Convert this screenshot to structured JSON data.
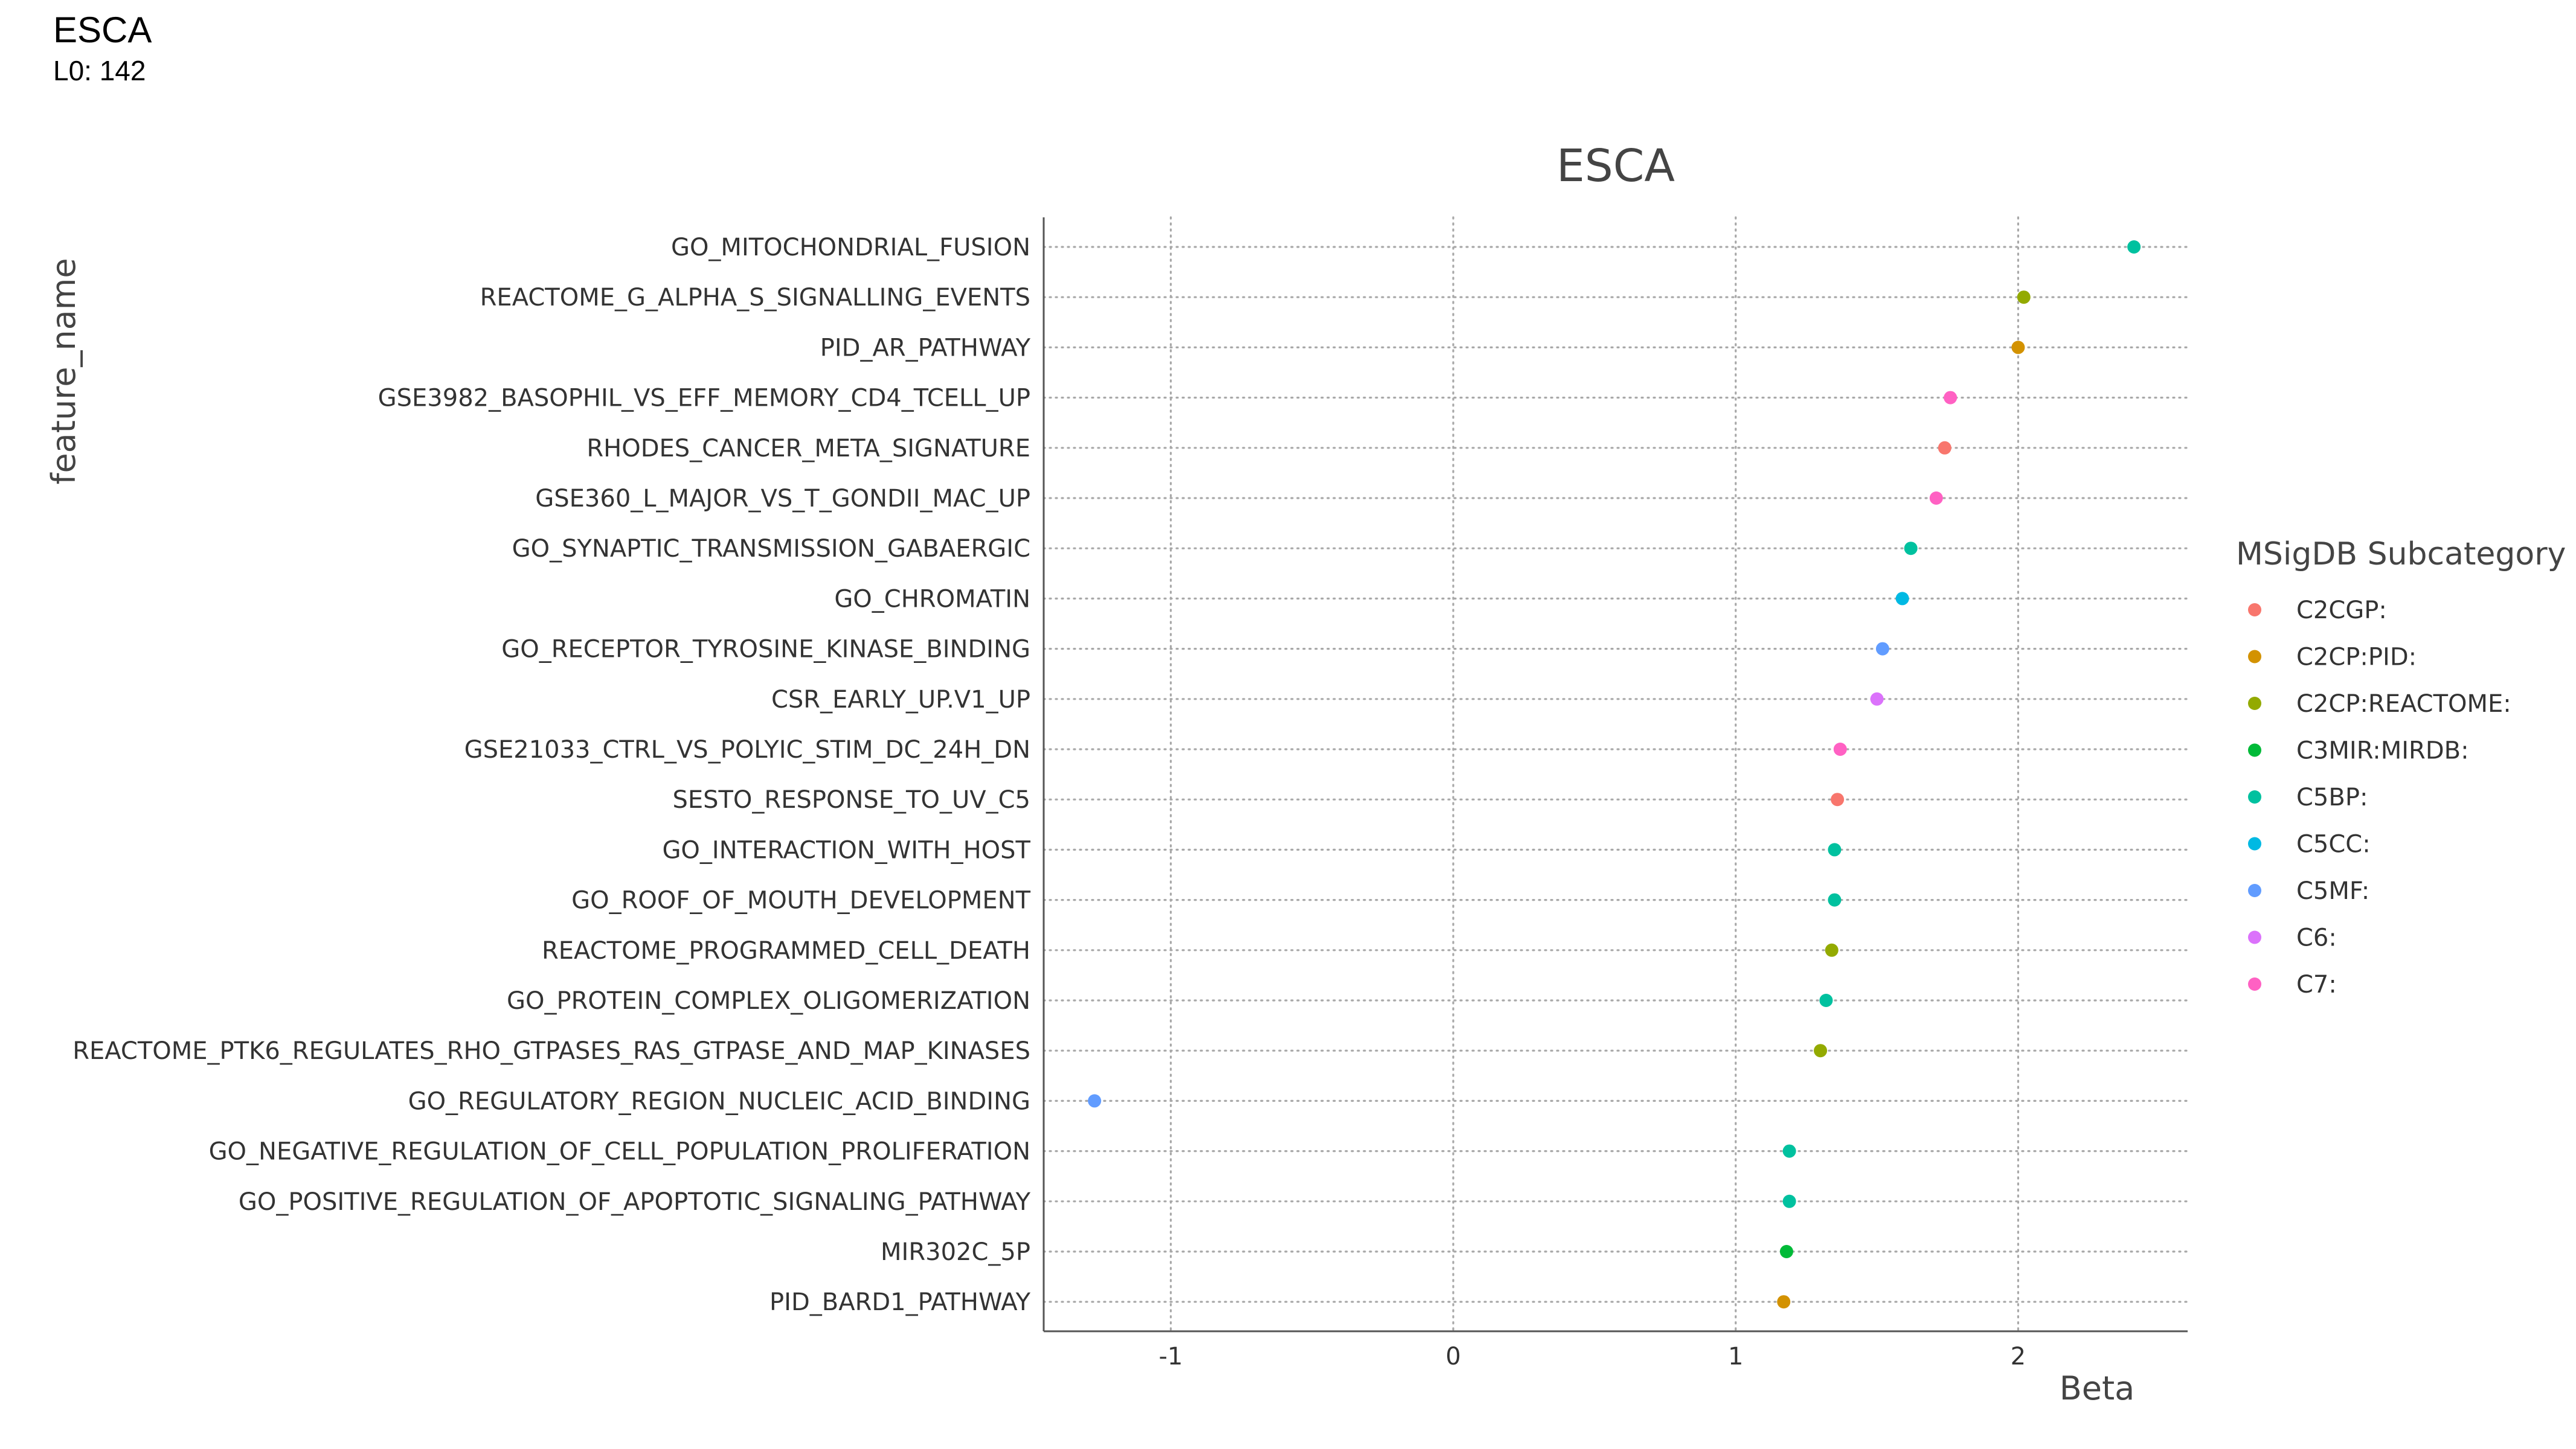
{
  "header": {
    "title": "ESCA",
    "subtitle": "L0: 142"
  },
  "chart_data": {
    "type": "scatter",
    "title": "ESCA",
    "xlabel": "Beta",
    "ylabel": "feature_name",
    "xlim": [
      -1.45,
      2.6
    ],
    "xticks": [
      -1,
      0,
      1,
      2
    ],
    "xtick_labels": [
      "-1",
      "0",
      "1",
      "2"
    ],
    "grid": "dotted",
    "legend": {
      "title": "MSigDB Subcategory",
      "placement": "right",
      "entries": [
        {
          "label": "C2CGP:",
          "color": "#F8766D"
        },
        {
          "label": "C2CP:PID:",
          "color": "#D39200"
        },
        {
          "label": "C2CP:REACTOME:",
          "color": "#93AA00"
        },
        {
          "label": "C3MIR:MIRDB:",
          "color": "#00BA38"
        },
        {
          "label": "C5BP:",
          "color": "#00C19F"
        },
        {
          "label": "C5CC:",
          "color": "#00B9E3"
        },
        {
          "label": "C5MF:",
          "color": "#619CFF"
        },
        {
          "label": "C6:",
          "color": "#DB72FB"
        },
        {
          "label": "C7:",
          "color": "#FF61C3"
        }
      ]
    },
    "points": [
      {
        "feature": "GO_MITOCHONDRIAL_FUSION",
        "beta": 2.41,
        "category": "C5BP:"
      },
      {
        "feature": "REACTOME_G_ALPHA_S_SIGNALLING_EVENTS",
        "beta": 2.02,
        "category": "C2CP:REACTOME:"
      },
      {
        "feature": "PID_AR_PATHWAY",
        "beta": 2.0,
        "category": "C2CP:PID:"
      },
      {
        "feature": "GSE3982_BASOPHIL_VS_EFF_MEMORY_CD4_TCELL_UP",
        "beta": 1.76,
        "category": "C7:"
      },
      {
        "feature": "RHODES_CANCER_META_SIGNATURE",
        "beta": 1.74,
        "category": "C2CGP:"
      },
      {
        "feature": "GSE360_L_MAJOR_VS_T_GONDII_MAC_UP",
        "beta": 1.71,
        "category": "C7:"
      },
      {
        "feature": "GO_SYNAPTIC_TRANSMISSION_GABAERGIC",
        "beta": 1.62,
        "category": "C5BP:"
      },
      {
        "feature": "GO_CHROMATIN",
        "beta": 1.59,
        "category": "C5CC:"
      },
      {
        "feature": "GO_RECEPTOR_TYROSINE_KINASE_BINDING",
        "beta": 1.52,
        "category": "C5MF:"
      },
      {
        "feature": "CSR_EARLY_UP.V1_UP",
        "beta": 1.5,
        "category": "C6:"
      },
      {
        "feature": "GSE21033_CTRL_VS_POLYIC_STIM_DC_24H_DN",
        "beta": 1.37,
        "category": "C7:"
      },
      {
        "feature": "SESTO_RESPONSE_TO_UV_C5",
        "beta": 1.36,
        "category": "C2CGP:"
      },
      {
        "feature": "GO_INTERACTION_WITH_HOST",
        "beta": 1.35,
        "category": "C5BP:"
      },
      {
        "feature": "GO_ROOF_OF_MOUTH_DEVELOPMENT",
        "beta": 1.35,
        "category": "C5BP:"
      },
      {
        "feature": "REACTOME_PROGRAMMED_CELL_DEATH",
        "beta": 1.34,
        "category": "C2CP:REACTOME:"
      },
      {
        "feature": "GO_PROTEIN_COMPLEX_OLIGOMERIZATION",
        "beta": 1.32,
        "category": "C5BP:"
      },
      {
        "feature": "REACTOME_PTK6_REGULATES_RHO_GTPASES_RAS_GTPASE_AND_MAP_KINASES",
        "beta": 1.3,
        "category": "C2CP:REACTOME:"
      },
      {
        "feature": "GO_REGULATORY_REGION_NUCLEIC_ACID_BINDING",
        "beta": -1.27,
        "category": "C5MF:"
      },
      {
        "feature": "GO_NEGATIVE_REGULATION_OF_CELL_POPULATION_PROLIFERATION",
        "beta": 1.19,
        "category": "C5BP:"
      },
      {
        "feature": "GO_POSITIVE_REGULATION_OF_APOPTOTIC_SIGNALING_PATHWAY",
        "beta": 1.19,
        "category": "C5BP:"
      },
      {
        "feature": "MIR302C_5P",
        "beta": 1.18,
        "category": "C3MIR:MIRDB:"
      },
      {
        "feature": "PID_BARD1_PATHWAY",
        "beta": 1.17,
        "category": "C2CP:PID:"
      }
    ]
  }
}
